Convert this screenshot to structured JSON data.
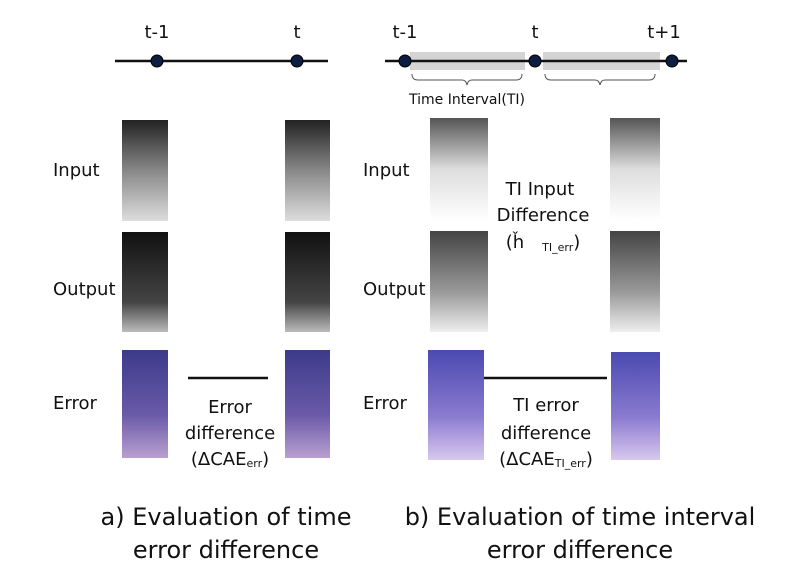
{
  "panel_a": {
    "timeline": [
      "t-1",
      "t"
    ],
    "rows": [
      "Input",
      "Output",
      "Error"
    ],
    "error_difference": {
      "line1": "Error",
      "line2": "difference",
      "open": "(ΔCAE",
      "subscript": "err",
      "close": ")"
    },
    "caption": [
      "a) Evaluation of time",
      "error difference"
    ]
  },
  "panel_b": {
    "timeline": [
      "t-1",
      "t",
      "t+1"
    ],
    "interval_label": "Time Interval(TI)",
    "rows": [
      "Input",
      "Output",
      "Error"
    ],
    "input_difference": {
      "line1": "TI Input",
      "line2": "Difference",
      "open": "(ȟ",
      "subscript": "TI_err",
      "close": ")"
    },
    "error_difference": {
      "line1": "TI error",
      "line2": "difference",
      "open": "(ΔCAE",
      "subscript": "TI_err",
      "close": ")"
    },
    "caption": [
      "b) Evaluation of time interval",
      "error difference"
    ]
  }
}
